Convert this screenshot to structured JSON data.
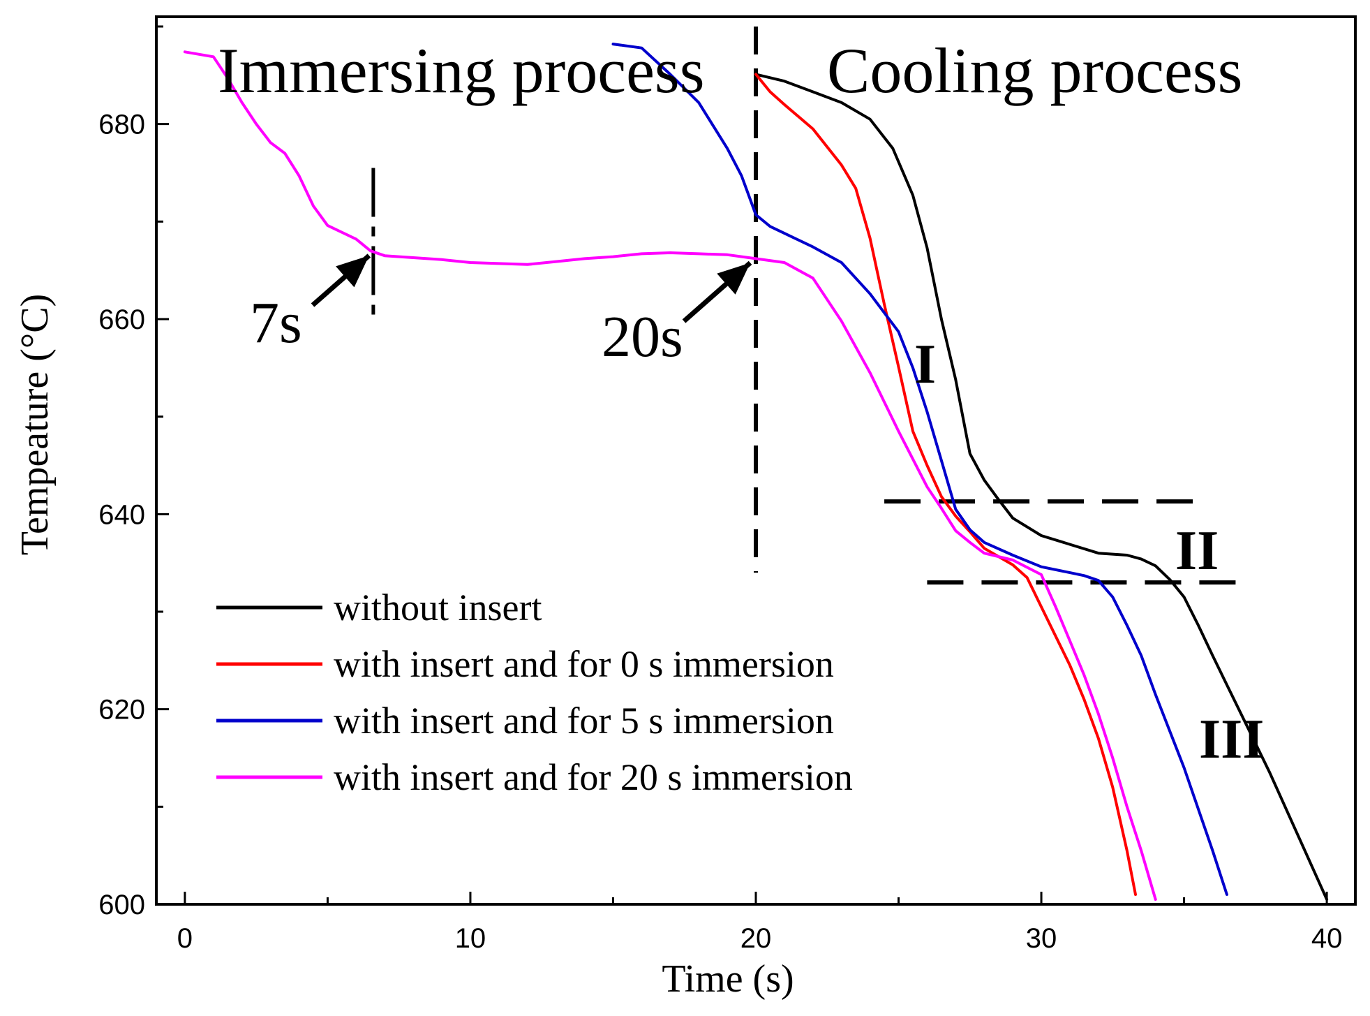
{
  "chart_data": {
    "type": "line",
    "title": "",
    "xlabel": "Time (s)",
    "ylabel": "Tempeature (°C)",
    "xlim": [
      -1,
      41
    ],
    "ylim": [
      600,
      691
    ],
    "xticks": [
      0,
      10,
      20,
      30,
      40
    ],
    "yticks": [
      600,
      620,
      640,
      660,
      680
    ],
    "grid": false,
    "legend_position": "bottom-left",
    "series": [
      {
        "name": "without insert",
        "color": "#000000",
        "points": [
          [
            20,
            685.1
          ],
          [
            21,
            684.4
          ],
          [
            22,
            683.3
          ],
          [
            23,
            682.2
          ],
          [
            24,
            680.5
          ],
          [
            24.8,
            677.5
          ],
          [
            25.5,
            672.7
          ],
          [
            26,
            667.3
          ],
          [
            26.5,
            660.0
          ],
          [
            27,
            653.8
          ],
          [
            27.5,
            646.2
          ],
          [
            28,
            643.5
          ],
          [
            28.5,
            641.5
          ],
          [
            29,
            639.6
          ],
          [
            30,
            637.8
          ],
          [
            31,
            636.9
          ],
          [
            32,
            636.0
          ],
          [
            33,
            635.8
          ],
          [
            33.5,
            635.4
          ],
          [
            34,
            634.7
          ],
          [
            34.5,
            633.3
          ],
          [
            35,
            631.5
          ],
          [
            35.5,
            628.6
          ],
          [
            36,
            625.5
          ],
          [
            36.5,
            622.5
          ],
          [
            37,
            619.5
          ],
          [
            38,
            613.5
          ],
          [
            39,
            607.0
          ],
          [
            40,
            600.5
          ]
        ]
      },
      {
        "name": "with insert and for 0 s immersion",
        "color": "#ff0000",
        "points": [
          [
            20,
            685.1
          ],
          [
            20.5,
            683.3
          ],
          [
            21,
            682.0
          ],
          [
            22,
            679.5
          ],
          [
            23,
            675.8
          ],
          [
            23.5,
            673.4
          ],
          [
            24,
            668.3
          ],
          [
            24.5,
            661.5
          ],
          [
            25,
            655.1
          ],
          [
            25.5,
            648.5
          ],
          [
            26,
            645.0
          ],
          [
            26.5,
            641.8
          ],
          [
            27,
            639.8
          ],
          [
            27.5,
            638.2
          ],
          [
            28,
            636.5
          ],
          [
            29,
            634.8
          ],
          [
            29.5,
            633.5
          ],
          [
            30,
            630.5
          ],
          [
            30.5,
            627.5
          ],
          [
            31,
            624.5
          ],
          [
            31.5,
            621.0
          ],
          [
            32,
            617.0
          ],
          [
            32.5,
            612.0
          ],
          [
            33,
            605.5
          ],
          [
            33.3,
            601.0
          ]
        ]
      },
      {
        "name": "with insert and for 5 s immersion",
        "color": "#0000cc",
        "points": [
          [
            15,
            688.2
          ],
          [
            16,
            687.8
          ],
          [
            17,
            685.1
          ],
          [
            18,
            682.2
          ],
          [
            19,
            677.5
          ],
          [
            19.5,
            674.7
          ],
          [
            20,
            670.7
          ],
          [
            20.5,
            669.5
          ],
          [
            21,
            668.8
          ],
          [
            22,
            667.4
          ],
          [
            23,
            665.8
          ],
          [
            24,
            662.6
          ],
          [
            25,
            658.7
          ],
          [
            25.5,
            655.0
          ],
          [
            26,
            650.5
          ],
          [
            26.5,
            645.5
          ],
          [
            27,
            640.5
          ],
          [
            27.5,
            638.4
          ],
          [
            28,
            637.1
          ],
          [
            29,
            635.8
          ],
          [
            30,
            634.6
          ],
          [
            31,
            634.0
          ],
          [
            31.5,
            633.7
          ],
          [
            32,
            633.2
          ],
          [
            32.5,
            631.5
          ],
          [
            33,
            628.6
          ],
          [
            33.5,
            625.5
          ],
          [
            34,
            621.5
          ],
          [
            35,
            614.0
          ],
          [
            36,
            605.5
          ],
          [
            36.5,
            601.0
          ]
        ]
      },
      {
        "name": "with insert and for 20 s immersion",
        "color": "#ff00ff",
        "points": [
          [
            0,
            687.4
          ],
          [
            1,
            686.9
          ],
          [
            1.5,
            684.7
          ],
          [
            2,
            682.2
          ],
          [
            2.5,
            680.0
          ],
          [
            3,
            678.1
          ],
          [
            3.5,
            677.0
          ],
          [
            4,
            674.7
          ],
          [
            4.5,
            671.6
          ],
          [
            5,
            669.6
          ],
          [
            6,
            668.2
          ],
          [
            6.5,
            667.0
          ],
          [
            7,
            666.5
          ],
          [
            8,
            666.3
          ],
          [
            9,
            666.1
          ],
          [
            10,
            665.8
          ],
          [
            11,
            665.7
          ],
          [
            12,
            665.6
          ],
          [
            13,
            665.9
          ],
          [
            14,
            666.2
          ],
          [
            15,
            666.4
          ],
          [
            16,
            666.7
          ],
          [
            17,
            666.8
          ],
          [
            18,
            666.7
          ],
          [
            19,
            666.6
          ],
          [
            20,
            666.2
          ],
          [
            21,
            665.8
          ],
          [
            22,
            664.2
          ],
          [
            23,
            659.8
          ],
          [
            24,
            654.5
          ],
          [
            25,
            648.5
          ],
          [
            26,
            642.8
          ],
          [
            26.5,
            640.6
          ],
          [
            27,
            638.3
          ],
          [
            27.5,
            637.1
          ],
          [
            28,
            636.0
          ],
          [
            29,
            635.3
          ],
          [
            30,
            633.8
          ],
          [
            30.5,
            630.5
          ],
          [
            31,
            627.0
          ],
          [
            31.5,
            623.5
          ],
          [
            32,
            619.5
          ],
          [
            32.5,
            615.0
          ],
          [
            33,
            610.0
          ],
          [
            33.5,
            605.5
          ],
          [
            34,
            600.5
          ]
        ]
      }
    ],
    "annotations": {
      "region_left": "Immersing process",
      "region_right": "Cooling process",
      "arrow_7s": "7s",
      "arrow_20s": "20s",
      "stage_1": "I",
      "stage_2": "II",
      "stage_3": "III"
    },
    "reference_lines": {
      "vertical_7s": {
        "x": 6.6,
        "y_from": 660,
        "y_to": 675.5
      },
      "vertical_20s": {
        "x": 20,
        "y_from": 634,
        "y_to": 690
      },
      "horizontal_upper": {
        "y": 641.3,
        "x_from": 24.5,
        "x_to": 35.5
      },
      "horizontal_lower": {
        "y": 633.0,
        "x_from": 26,
        "x_to": 37
      }
    }
  }
}
